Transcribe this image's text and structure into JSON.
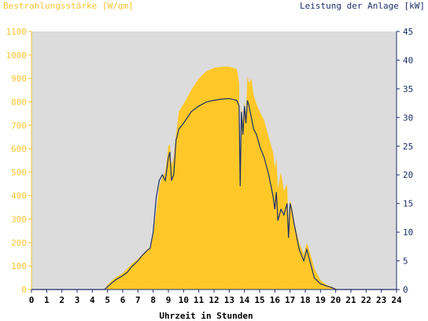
{
  "chart_data": {
    "type": "area",
    "title_left": "Bestrahlungsstärke [W/qm]",
    "title_right": "Leistung der Anlage [kW]",
    "xlabel": "Uhrzeit in Stunden",
    "xlim": [
      0,
      24
    ],
    "x_ticks": [
      "0",
      "1",
      "2",
      "3",
      "4",
      "5",
      "6",
      "7",
      "8",
      "9",
      "10",
      "11",
      "12",
      "13",
      "14",
      "15",
      "16",
      "17",
      "18",
      "19",
      "20",
      "21",
      "22",
      "23",
      "24"
    ],
    "y_left": {
      "lim": [
        0,
        1100
      ],
      "ticks": [
        "0",
        "100",
        "200",
        "300",
        "400",
        "500",
        "600",
        "700",
        "800",
        "900",
        "1000",
        "1100"
      ]
    },
    "y_right": {
      "lim": [
        0,
        45
      ],
      "ticks": [
        "0",
        "5",
        "10",
        "15",
        "20",
        "25",
        "30",
        "35",
        "40",
        "45"
      ]
    },
    "colors": {
      "irradiance": "#ffc828",
      "power": "#1c2f6b",
      "plot_bg": "#dcdcdc",
      "left_axis": "#f5c431",
      "right_axis": "#1d2f6b"
    },
    "series": [
      {
        "name": "Bestrahlungsstärke",
        "axis": "left",
        "x": [
          0,
          4.8,
          5.0,
          5.3,
          5.6,
          6.0,
          6.3,
          6.6,
          7.0,
          7.3,
          7.6,
          7.8,
          8.0,
          8.2,
          8.4,
          8.6,
          8.8,
          9.0,
          9.1,
          9.2,
          9.35,
          9.5,
          9.7,
          10.0,
          10.5,
          11.0,
          11.5,
          12.0,
          12.5,
          13.0,
          13.5,
          13.65,
          13.72,
          13.8,
          13.9,
          14.0,
          14.1,
          14.2,
          14.3,
          14.45,
          14.6,
          14.8,
          15.0,
          15.3,
          15.6,
          15.9,
          16.0,
          16.1,
          16.2,
          16.4,
          16.6,
          16.8,
          16.9,
          17.0,
          17.1,
          17.3,
          17.6,
          17.9,
          18.1,
          18.3,
          18.6,
          19.0,
          19.4,
          19.8,
          20.0,
          20.1,
          24.0
        ],
        "values": [
          0,
          0,
          20,
          40,
          55,
          70,
          90,
          110,
          130,
          150,
          170,
          180,
          230,
          330,
          440,
          480,
          500,
          610,
          620,
          530,
          560,
          660,
          760,
          790,
          850,
          900,
          930,
          945,
          950,
          950,
          940,
          880,
          500,
          780,
          720,
          800,
          750,
          910,
          880,
          900,
          830,
          790,
          760,
          720,
          650,
          580,
          520,
          560,
          430,
          500,
          420,
          450,
          300,
          380,
          360,
          280,
          200,
          150,
          200,
          160,
          90,
          40,
          20,
          10,
          5,
          0,
          0
        ]
      },
      {
        "name": "Leistung der Anlage",
        "axis": "right",
        "x": [
          0,
          4.8,
          5.0,
          5.3,
          5.6,
          6.0,
          6.3,
          6.6,
          7.0,
          7.3,
          7.6,
          7.8,
          8.0,
          8.2,
          8.4,
          8.6,
          8.8,
          9.0,
          9.1,
          9.2,
          9.35,
          9.5,
          9.7,
          10.0,
          10.5,
          11.0,
          11.5,
          12.0,
          12.5,
          13.0,
          13.5,
          13.65,
          13.72,
          13.8,
          13.9,
          14.0,
          14.1,
          14.2,
          14.3,
          14.45,
          14.6,
          14.8,
          15.0,
          15.3,
          15.6,
          15.9,
          16.0,
          16.1,
          16.2,
          16.4,
          16.6,
          16.8,
          16.9,
          17.0,
          17.1,
          17.3,
          17.6,
          17.9,
          18.1,
          18.3,
          18.6,
          19.0,
          19.4,
          19.8,
          20.0,
          20.1,
          24.0
        ],
        "values": [
          0,
          0,
          0.5,
          1.2,
          1.8,
          2.4,
          3.0,
          4.0,
          5.0,
          6.0,
          6.8,
          7.2,
          10,
          16,
          19,
          20,
          19,
          23,
          24,
          19,
          20,
          26,
          28,
          29,
          31,
          32,
          32.7,
          33,
          33.2,
          33.3,
          33,
          32,
          18,
          31,
          27,
          32,
          29,
          33,
          32,
          30,
          28,
          27,
          25,
          23,
          20,
          16,
          14,
          17,
          12,
          14,
          13,
          15,
          9,
          15,
          14,
          11,
          7,
          5,
          7,
          5,
          2,
          1,
          0.6,
          0.3,
          0,
          0,
          0
        ]
      }
    ]
  }
}
